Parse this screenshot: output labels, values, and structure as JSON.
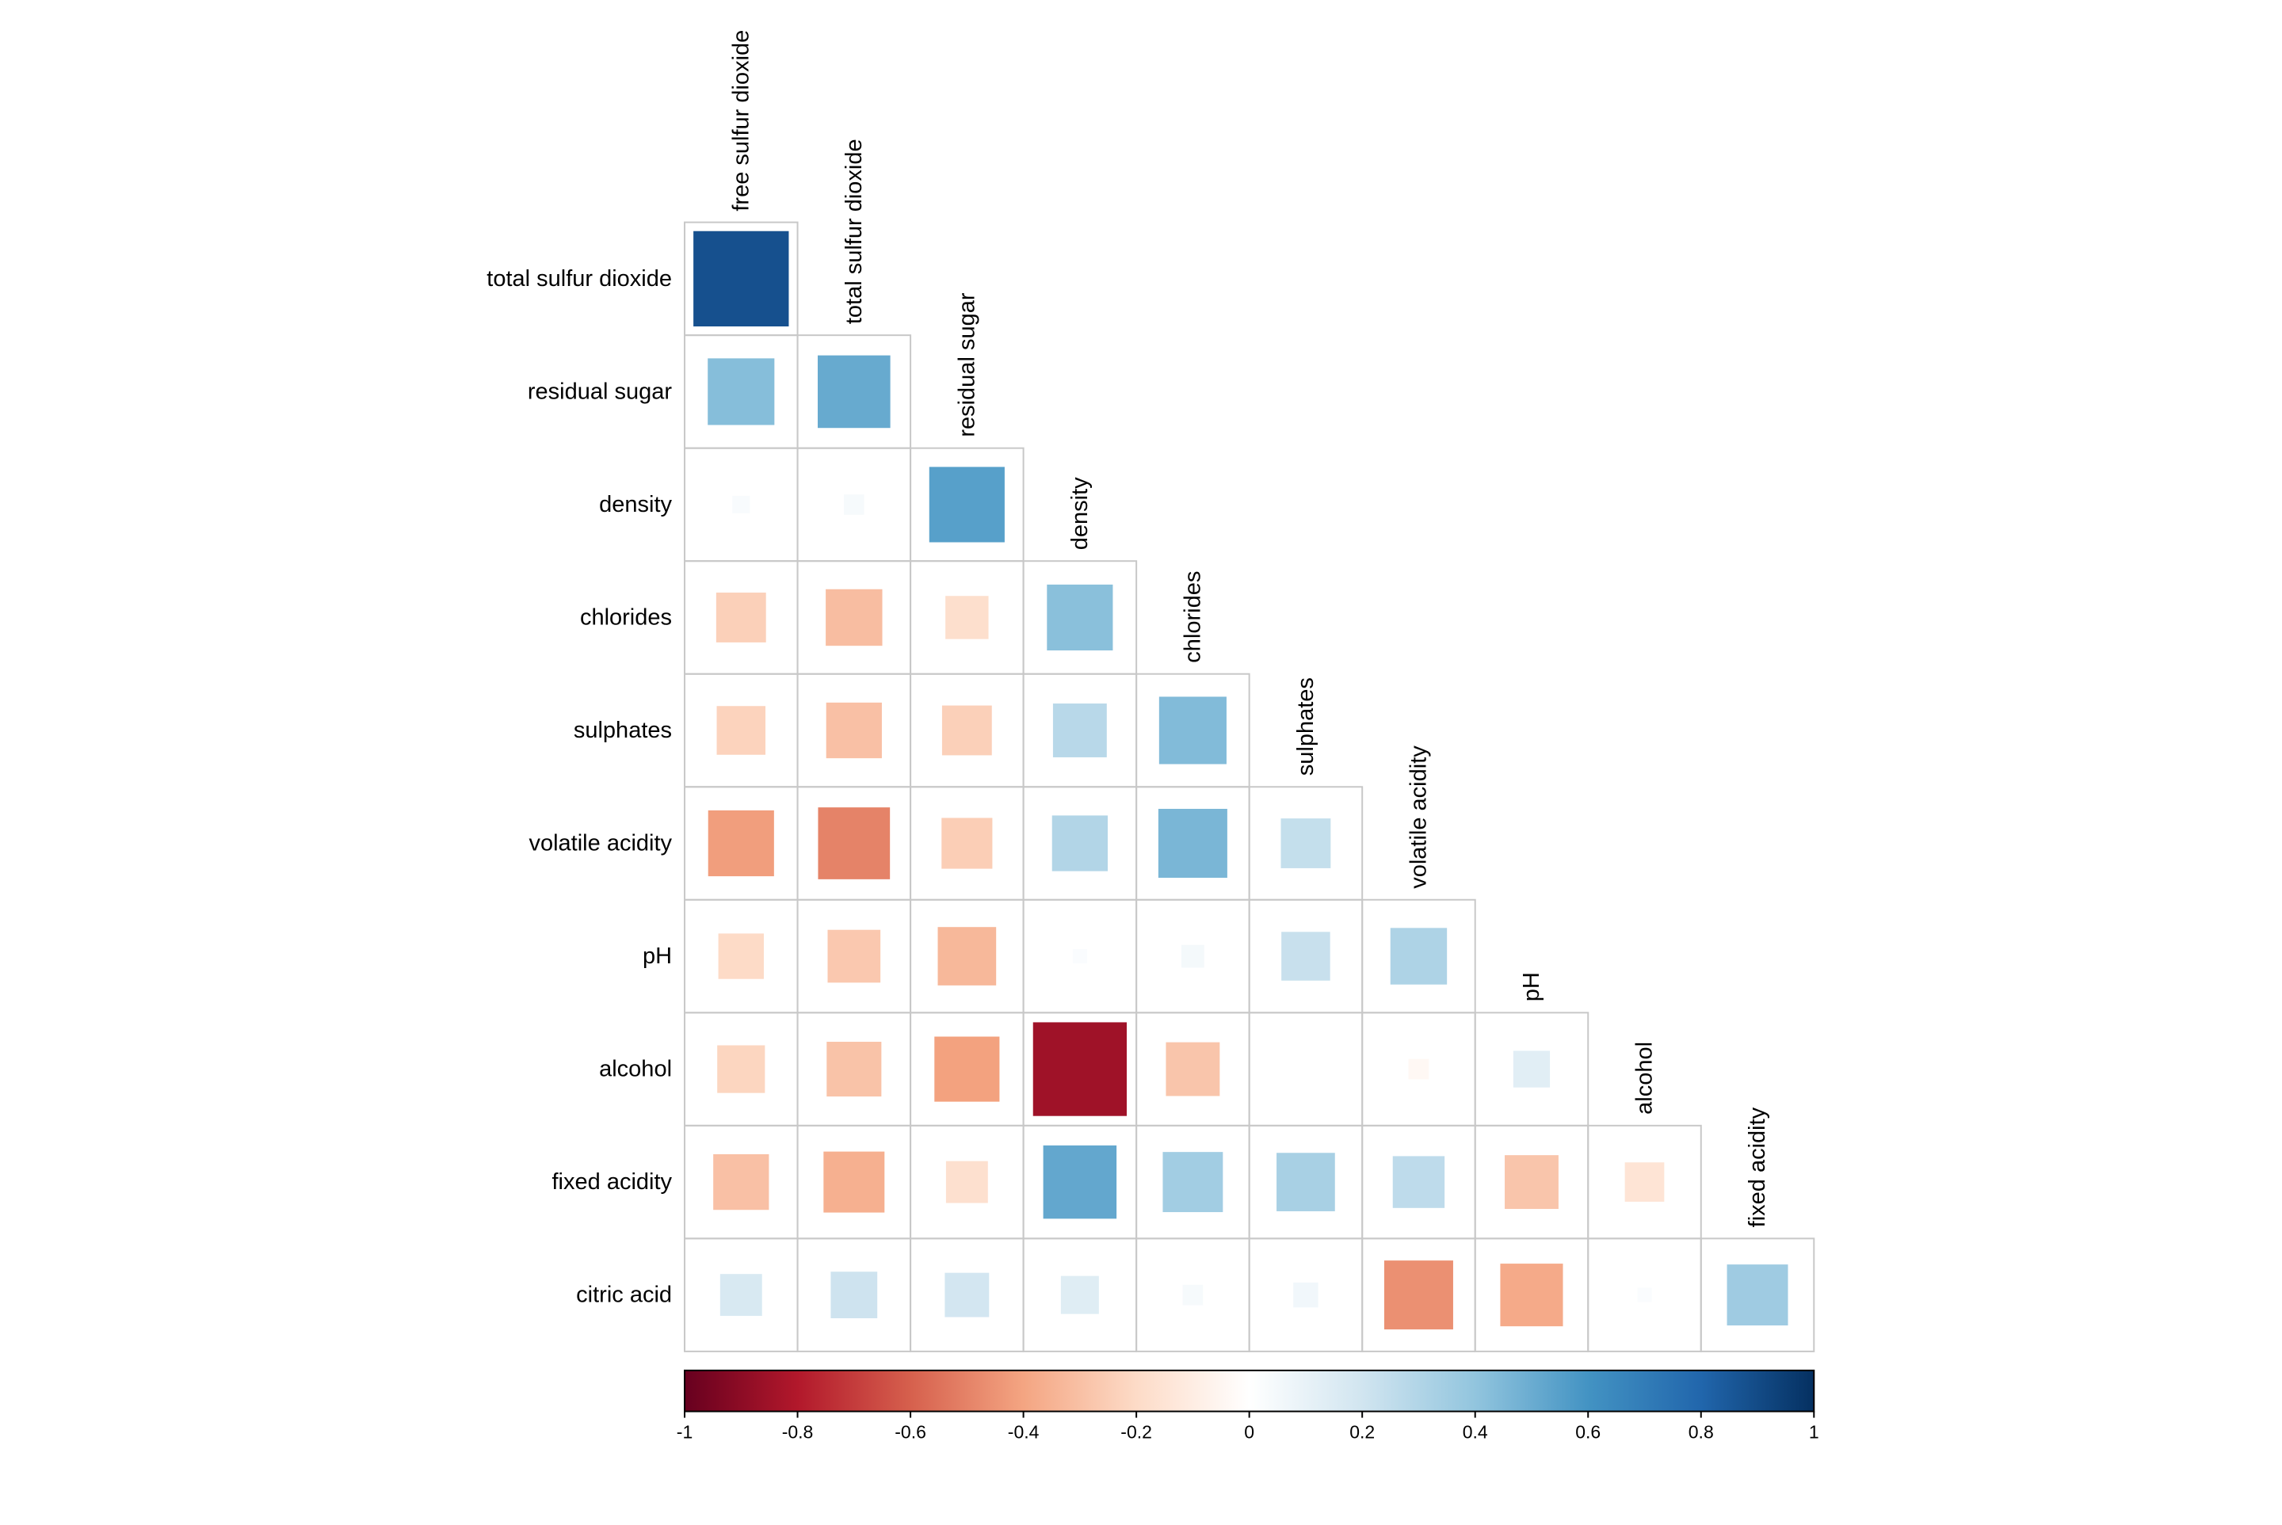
{
  "chart_data": {
    "type": "heatmap",
    "variables": [
      "free sulfur dioxide",
      "total sulfur dioxide",
      "residual sugar",
      "density",
      "chlorides",
      "sulphates",
      "volatile acidity",
      "pH",
      "alcohol",
      "fixed acidity",
      "citric acid"
    ],
    "row_labels": [
      "total sulfur dioxide",
      "residual sugar",
      "density",
      "chlorides",
      "sulphates",
      "volatile acidity",
      "pH",
      "alcohol",
      "fixed acidity",
      "citric acid"
    ],
    "column_labels": [
      "free sulfur dioxide",
      "total sulfur dioxide",
      "residual sugar",
      "density",
      "chlorides",
      "sulphates",
      "volatile acidity",
      "pH",
      "alcohol",
      "fixed acidity"
    ],
    "matrix": [
      [
        0.88
      ],
      [
        0.43,
        0.51
      ],
      [
        0.03,
        0.04,
        0.55
      ],
      [
        -0.24,
        -0.31,
        -0.18,
        0.42
      ],
      [
        -0.23,
        -0.3,
        -0.24,
        0.28,
        0.44
      ],
      [
        -0.42,
        -0.5,
        -0.25,
        0.3,
        0.46,
        0.24
      ],
      [
        -0.2,
        -0.27,
        -0.33,
        0.02,
        0.05,
        0.23,
        0.31
      ],
      [
        -0.22,
        -0.29,
        -0.41,
        -0.85,
        -0.28,
        0.0,
        -0.04,
        0.13
      ],
      [
        -0.3,
        -0.36,
        -0.17,
        0.52,
        0.35,
        0.33,
        0.26,
        -0.28,
        -0.15
      ],
      [
        0.17,
        0.21,
        0.19,
        0.14,
        0.04,
        0.06,
        -0.46,
        -0.38,
        0.02,
        0.36
      ]
    ],
    "colorbar": {
      "min": -1,
      "max": 1,
      "ticks": [
        "-1",
        "-0.8",
        "-0.6",
        "-0.4",
        "-0.2",
        "0",
        "0.2",
        "0.4",
        "0.6",
        "0.8",
        "1"
      ]
    },
    "palette": [
      "#67001f",
      "#b2182b",
      "#d6604d",
      "#f4a582",
      "#fddbc7",
      "#ffffff",
      "#d1e5f0",
      "#92c5de",
      "#4393c3",
      "#2166ac",
      "#053061"
    ],
    "grid": true
  }
}
